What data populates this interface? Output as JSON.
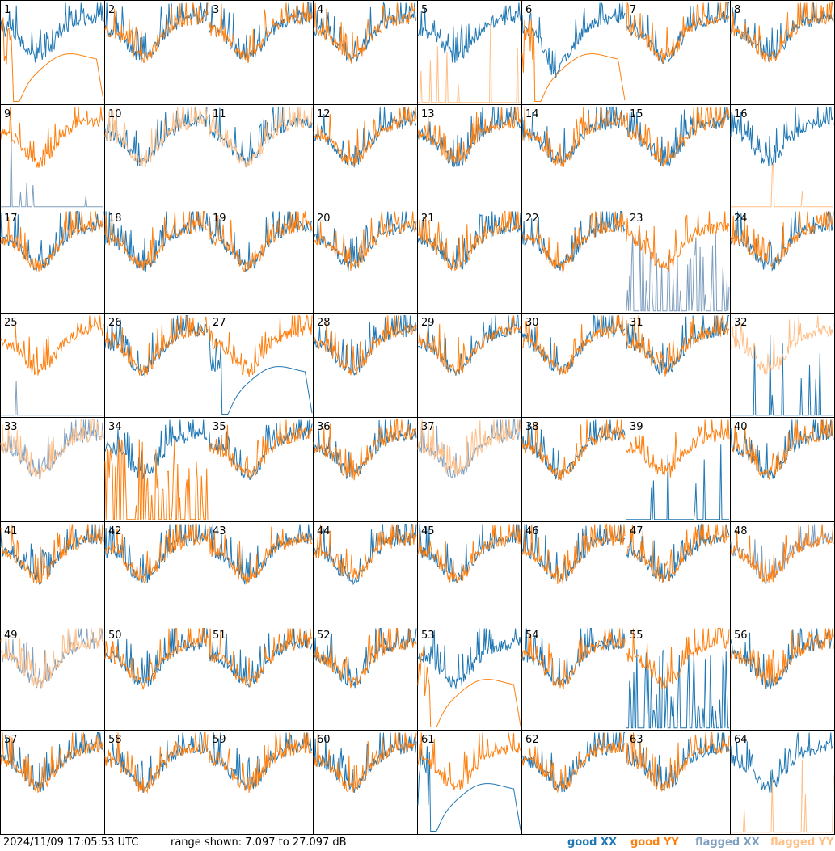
{
  "footer": {
    "timestamp": "2024/11/09 17:05:53 UTC",
    "range_text": "range shown: 7.097 to 27.097 dB"
  },
  "legend": [
    {
      "label": "good XX",
      "color": "#1f77b4"
    },
    {
      "label": "good YY",
      "color": "#ff7f0e"
    },
    {
      "label": "flagged XX",
      "color": "#7f9fbf"
    },
    {
      "label": "flagged YY",
      "color": "#ffbf87"
    }
  ],
  "chart_data": {
    "type": "line",
    "y_unit": "dB",
    "ylim": [
      7.097,
      27.097
    ],
    "panel_count": 64,
    "panels": [
      {
        "id": "1",
        "xx": "good",
        "yy": "good",
        "xx_shape": "noisy",
        "yy_shape": "smooth_dip"
      },
      {
        "id": "2",
        "xx": "good",
        "yy": "good",
        "xx_shape": "noisy",
        "yy_shape": "noisy"
      },
      {
        "id": "3",
        "xx": "good",
        "yy": "good",
        "xx_shape": "noisy",
        "yy_shape": "noisy"
      },
      {
        "id": "4",
        "xx": "good",
        "yy": "good",
        "xx_shape": "noisy",
        "yy_shape": "noisy"
      },
      {
        "id": "5",
        "xx": "good",
        "yy": "flagged",
        "xx_shape": "noisy",
        "yy_shape": "spikes"
      },
      {
        "id": "6",
        "xx": "good",
        "yy": "good",
        "xx_shape": "noisy_deep",
        "yy_shape": "smooth_dip"
      },
      {
        "id": "7",
        "xx": "good",
        "yy": "good",
        "xx_shape": "noisy",
        "yy_shape": "noisy"
      },
      {
        "id": "8",
        "xx": "good",
        "yy": "good",
        "xx_shape": "noisy",
        "yy_shape": "noisy"
      },
      {
        "id": "9",
        "xx": "flagged",
        "yy": "good",
        "xx_shape": "spikes",
        "yy_shape": "noisy"
      },
      {
        "id": "10",
        "xx": "good",
        "yy": "flagged",
        "xx_shape": "noisy",
        "yy_shape": "noisy"
      },
      {
        "id": "11",
        "xx": "good",
        "yy": "flagged",
        "xx_shape": "noisy",
        "yy_shape": "noisy"
      },
      {
        "id": "12",
        "xx": "good",
        "yy": "good",
        "xx_shape": "noisy",
        "yy_shape": "noisy"
      },
      {
        "id": "13",
        "xx": "good",
        "yy": "good",
        "xx_shape": "noisy",
        "yy_shape": "noisy"
      },
      {
        "id": "14",
        "xx": "good",
        "yy": "good",
        "xx_shape": "noisy",
        "yy_shape": "noisy"
      },
      {
        "id": "15",
        "xx": "good",
        "yy": "good",
        "xx_shape": "noisy",
        "yy_shape": "noisy"
      },
      {
        "id": "16",
        "xx": "good",
        "yy": "flagged",
        "xx_shape": "noisy",
        "yy_shape": "spikes"
      },
      {
        "id": "17",
        "xx": "good",
        "yy": "good",
        "xx_shape": "noisy",
        "yy_shape": "noisy"
      },
      {
        "id": "18",
        "xx": "good",
        "yy": "good",
        "xx_shape": "noisy",
        "yy_shape": "noisy"
      },
      {
        "id": "19",
        "xx": "good",
        "yy": "good",
        "xx_shape": "noisy",
        "yy_shape": "noisy"
      },
      {
        "id": "20",
        "xx": "good",
        "yy": "good",
        "xx_shape": "noisy",
        "yy_shape": "noisy"
      },
      {
        "id": "21",
        "xx": "good",
        "yy": "good",
        "xx_shape": "noisy",
        "yy_shape": "noisy"
      },
      {
        "id": "22",
        "xx": "good",
        "yy": "good",
        "xx_shape": "noisy",
        "yy_shape": "noisy"
      },
      {
        "id": "23",
        "xx": "flagged",
        "yy": "good",
        "xx_shape": "spikes_dense",
        "yy_shape": "noisy"
      },
      {
        "id": "24",
        "xx": "good",
        "yy": "good",
        "xx_shape": "noisy",
        "yy_shape": "noisy"
      },
      {
        "id": "25",
        "xx": "flagged",
        "yy": "good",
        "xx_shape": "spike_single",
        "yy_shape": "noisy"
      },
      {
        "id": "26",
        "xx": "good",
        "yy": "good",
        "xx_shape": "noisy",
        "yy_shape": "noisy"
      },
      {
        "id": "27",
        "xx": "good",
        "yy": "good",
        "xx_shape": "smooth_dip",
        "yy_shape": "noisy"
      },
      {
        "id": "28",
        "xx": "good",
        "yy": "good",
        "xx_shape": "noisy",
        "yy_shape": "noisy"
      },
      {
        "id": "29",
        "xx": "good",
        "yy": "good",
        "xx_shape": "noisy",
        "yy_shape": "noisy"
      },
      {
        "id": "30",
        "xx": "good",
        "yy": "good",
        "xx_shape": "noisy",
        "yy_shape": "noisy"
      },
      {
        "id": "31",
        "xx": "good",
        "yy": "good",
        "xx_shape": "noisy",
        "yy_shape": "noisy"
      },
      {
        "id": "32",
        "xx": "good",
        "yy": "flagged",
        "xx_shape": "spikes",
        "yy_shape": "noisy"
      },
      {
        "id": "33",
        "xx": "flagged",
        "yy": "flagged",
        "xx_shape": "noisy",
        "yy_shape": "noisy"
      },
      {
        "id": "34",
        "xx": "good",
        "yy": "good",
        "xx_shape": "noisy",
        "yy_shape": "spikes_dense"
      },
      {
        "id": "35",
        "xx": "good",
        "yy": "good",
        "xx_shape": "noisy",
        "yy_shape": "noisy"
      },
      {
        "id": "36",
        "xx": "good",
        "yy": "good",
        "xx_shape": "noisy",
        "yy_shape": "noisy"
      },
      {
        "id": "37",
        "xx": "flagged",
        "yy": "flagged",
        "xx_shape": "noisy",
        "yy_shape": "noisy"
      },
      {
        "id": "38",
        "xx": "good",
        "yy": "good",
        "xx_shape": "noisy",
        "yy_shape": "noisy"
      },
      {
        "id": "39",
        "xx": "good",
        "yy": "good",
        "xx_shape": "spikes",
        "yy_shape": "noisy"
      },
      {
        "id": "40",
        "xx": "good",
        "yy": "good",
        "xx_shape": "noisy",
        "yy_shape": "noisy"
      },
      {
        "id": "41",
        "xx": "good",
        "yy": "good",
        "xx_shape": "noisy",
        "yy_shape": "noisy"
      },
      {
        "id": "42",
        "xx": "good",
        "yy": "good",
        "xx_shape": "noisy",
        "yy_shape": "noisy"
      },
      {
        "id": "43",
        "xx": "good",
        "yy": "good",
        "xx_shape": "noisy",
        "yy_shape": "noisy"
      },
      {
        "id": "44",
        "xx": "good",
        "yy": "good",
        "xx_shape": "noisy",
        "yy_shape": "noisy"
      },
      {
        "id": "45",
        "xx": "good",
        "yy": "good",
        "xx_shape": "noisy",
        "yy_shape": "noisy"
      },
      {
        "id": "46",
        "xx": "good",
        "yy": "good",
        "xx_shape": "noisy",
        "yy_shape": "noisy"
      },
      {
        "id": "47",
        "xx": "good",
        "yy": "good",
        "xx_shape": "noisy",
        "yy_shape": "noisy"
      },
      {
        "id": "48",
        "xx": "flagged",
        "yy": "good",
        "xx_shape": "noisy",
        "yy_shape": "noisy"
      },
      {
        "id": "49",
        "xx": "flagged",
        "yy": "flagged",
        "xx_shape": "noisy",
        "yy_shape": "noisy"
      },
      {
        "id": "50",
        "xx": "good",
        "yy": "good",
        "xx_shape": "noisy",
        "yy_shape": "noisy"
      },
      {
        "id": "51",
        "xx": "good",
        "yy": "good",
        "xx_shape": "noisy",
        "yy_shape": "noisy"
      },
      {
        "id": "52",
        "xx": "good",
        "yy": "good",
        "xx_shape": "noisy",
        "yy_shape": "noisy"
      },
      {
        "id": "53",
        "xx": "good",
        "yy": "good",
        "xx_shape": "noisy",
        "yy_shape": "smooth_dip"
      },
      {
        "id": "54",
        "xx": "good",
        "yy": "good",
        "xx_shape": "noisy",
        "yy_shape": "noisy"
      },
      {
        "id": "55",
        "xx": "good",
        "yy": "good",
        "xx_shape": "spikes_dense",
        "yy_shape": "noisy"
      },
      {
        "id": "56",
        "xx": "good",
        "yy": "good",
        "xx_shape": "noisy",
        "yy_shape": "noisy"
      },
      {
        "id": "57",
        "xx": "good",
        "yy": "good",
        "xx_shape": "noisy",
        "yy_shape": "noisy"
      },
      {
        "id": "58",
        "xx": "good",
        "yy": "good",
        "xx_shape": "noisy",
        "yy_shape": "noisy"
      },
      {
        "id": "59",
        "xx": "good",
        "yy": "good",
        "xx_shape": "noisy",
        "yy_shape": "noisy"
      },
      {
        "id": "60",
        "xx": "good",
        "yy": "good",
        "xx_shape": "noisy",
        "yy_shape": "noisy"
      },
      {
        "id": "61",
        "xx": "good",
        "yy": "good",
        "xx_shape": "smooth_dip",
        "yy_shape": "noisy"
      },
      {
        "id": "62",
        "xx": "good",
        "yy": "good",
        "xx_shape": "noisy",
        "yy_shape": "noisy"
      },
      {
        "id": "63",
        "xx": "good",
        "yy": "good",
        "xx_shape": "noisy",
        "yy_shape": "noisy"
      },
      {
        "id": "64",
        "xx": "good",
        "yy": "flagged",
        "xx_shape": "noisy",
        "yy_shape": "spikes"
      }
    ]
  }
}
